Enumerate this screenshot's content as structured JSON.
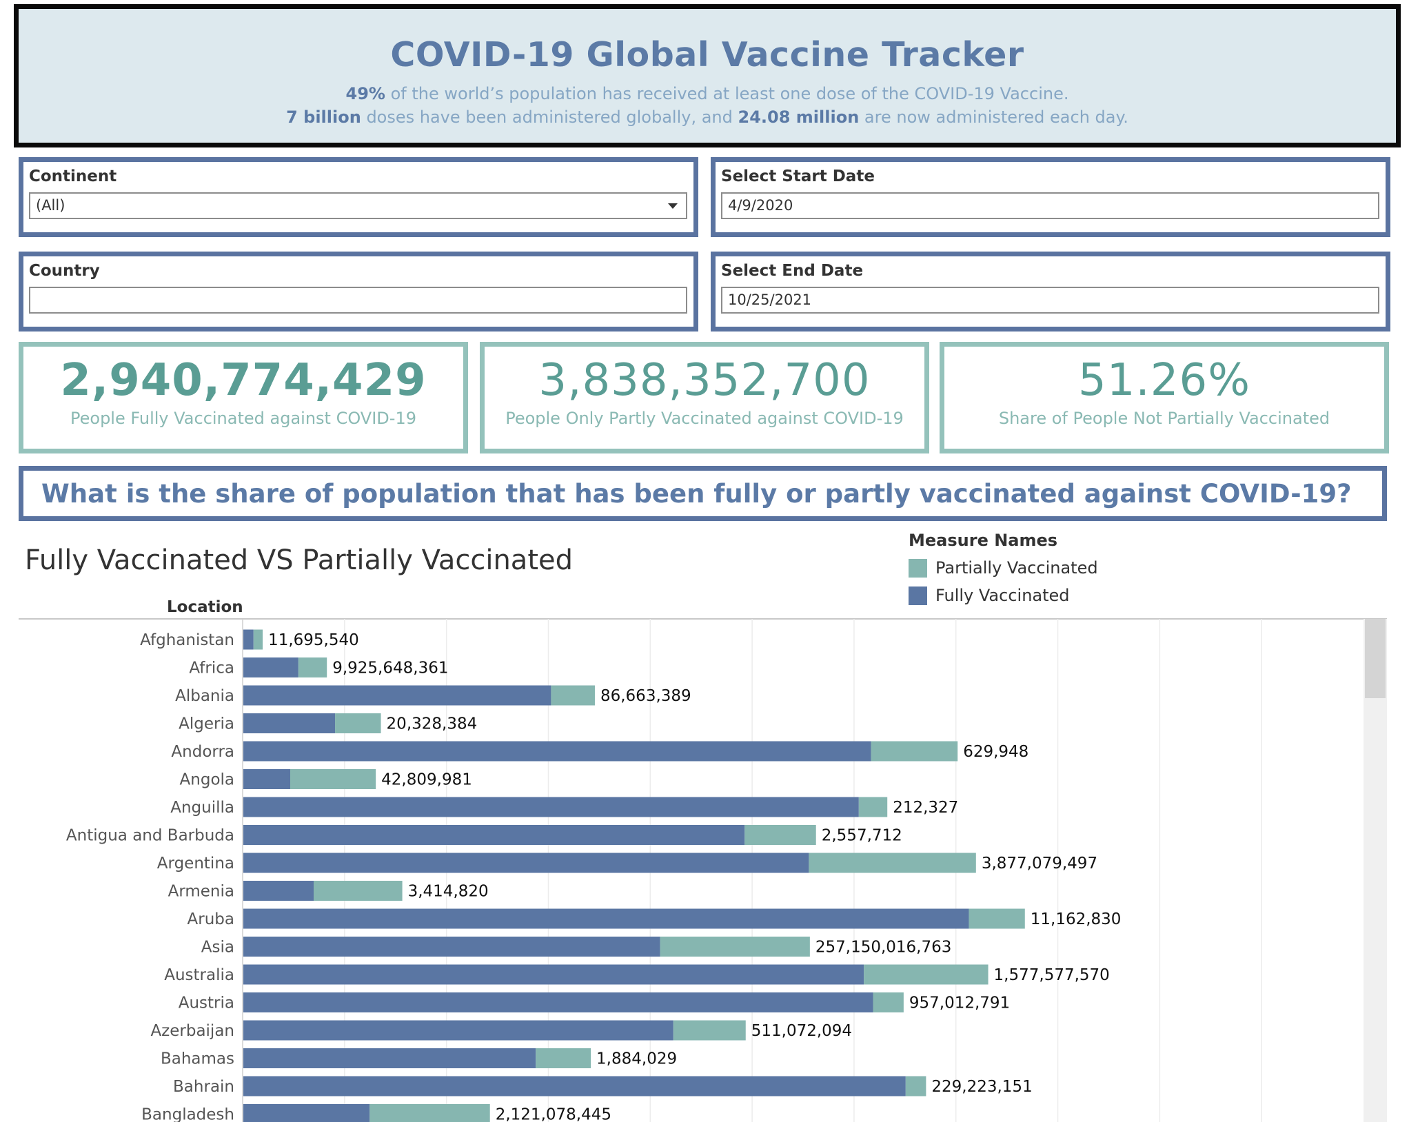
{
  "header": {
    "title": "COVID-19 Global Vaccine Tracker",
    "line1_bold": "49%",
    "line1_text": " of the world’s population has received at least one dose of the COVID-19 Vaccine.",
    "line2_bold1": "7 billion",
    "line2_text1": " doses have been administered globally, and ",
    "line2_bold2": "24.08 million",
    "line2_text2": " are now administered each day."
  },
  "filters": {
    "continent": {
      "label": "Continent",
      "value": "(All)"
    },
    "country": {
      "label": "Country",
      "value": ""
    },
    "start_date": {
      "label": "Select Start Date",
      "value": "4/9/2020"
    },
    "end_date": {
      "label": "Select End Date",
      "value": "10/25/2021"
    }
  },
  "kpis": [
    {
      "value": "2,940,774,429",
      "caption": "People Fully Vaccinated against COVID-19"
    },
    {
      "value": "3,838,352,700",
      "caption": "People Only Partly Vaccinated against COVID-19"
    },
    {
      "value": "51.26%",
      "caption": "Share of People Not Partially Vaccinated"
    }
  ],
  "question": "What is the share of population that has been fully or partly vaccinated against COVID-19?",
  "chart": {
    "title": "Fully Vaccinated VS Partially Vaccinated",
    "row_header": "Location",
    "legend_title": "Measure Names",
    "legend": [
      {
        "name": "Partially Vaccinated",
        "color": "#86b6b0"
      },
      {
        "name": "Fully Vaccinated",
        "color": "#5a76a3"
      }
    ]
  },
  "chart_data": {
    "type": "bar",
    "orientation": "horizontal",
    "stacked": true,
    "title": "Fully Vaccinated VS Partially Vaccinated",
    "ylabel": "Location",
    "categories": [
      "Afghanistan",
      "Africa",
      "Albania",
      "Algeria",
      "Andorra",
      "Angola",
      "Anguilla",
      "Antigua and Barbuda",
      "Argentina",
      "Armenia",
      "Aruba",
      "Asia",
      "Australia",
      "Austria",
      "Azerbaijan",
      "Bahamas",
      "Bahrain",
      "Bangladesh"
    ],
    "series": [
      {
        "name": "Fully Vaccinated",
        "color": "#5a76a3",
        "values": [
          1.0,
          5.4,
          30.2,
          9.0,
          61.6,
          4.6,
          60.4,
          49.2,
          55.5,
          6.9,
          71.2,
          40.9,
          60.9,
          61.8,
          42.2,
          28.7,
          65.0,
          12.4
        ]
      },
      {
        "name": "Partially Vaccinated",
        "color": "#86b6b0",
        "values": [
          0.9,
          2.8,
          4.3,
          4.5,
          8.5,
          8.4,
          2.8,
          7.0,
          16.4,
          8.7,
          5.5,
          14.7,
          12.2,
          3.0,
          7.1,
          5.4,
          2.0,
          11.8
        ]
      }
    ],
    "labels": [
      "11,695,540",
      "9,925,648,361",
      "86,663,389",
      "20,328,384",
      "629,948",
      "42,809,981",
      "212,327",
      "2,557,712",
      "3,877,079,497",
      "3,414,820",
      "11,162,830",
      "257,150,016,763",
      "1,577,577,570",
      "957,012,791",
      "511,072,094",
      "1,884,029",
      "229,223,151",
      "2,121,078,445"
    ],
    "xlim": [
      0,
      110
    ],
    "grid": true
  }
}
